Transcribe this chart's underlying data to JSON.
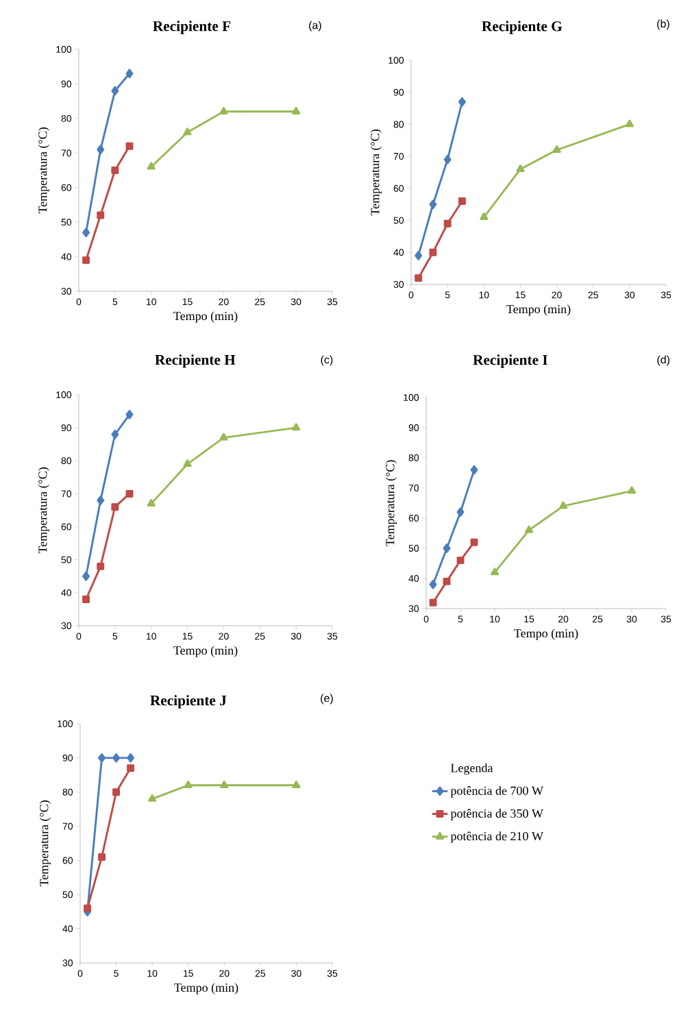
{
  "chart_data": [
    {
      "type": "line",
      "title": "Recipiente F",
      "xlabel": "Tempo (min)",
      "ylabel": "Temperatura (°C)",
      "annotations": [
        "(a)"
      ],
      "xlim": [
        0,
        35
      ],
      "ylim": [
        30,
        100
      ],
      "xticks": [
        0,
        5,
        10,
        15,
        20,
        25,
        30,
        35
      ],
      "yticks": [
        30,
        40,
        50,
        60,
        70,
        80,
        90,
        100
      ],
      "grid": false,
      "series": [
        {
          "color": "#4a7ebb",
          "marker": "diamond",
          "x": [
            1,
            3,
            5,
            7
          ],
          "values": [
            47,
            71,
            88,
            93
          ]
        },
        {
          "color": "#be4b48",
          "marker": "square",
          "x": [
            1,
            3,
            5,
            7
          ],
          "values": [
            39,
            52,
            65,
            72
          ]
        },
        {
          "color": "#98b954",
          "marker": "triangle",
          "x": [
            10,
            15,
            20,
            30
          ],
          "values": [
            66,
            76,
            82,
            82
          ]
        }
      ]
    },
    {
      "type": "line",
      "title": "Recipiente G",
      "xlabel": "Tempo (min)",
      "ylabel": "Temperatura (°C)",
      "annotations": [
        "(b)"
      ],
      "xlim": [
        0,
        35
      ],
      "ylim": [
        30,
        100
      ],
      "xticks": [
        0,
        5,
        10,
        15,
        20,
        25,
        30,
        35
      ],
      "yticks": [
        30,
        40,
        50,
        60,
        70,
        80,
        90,
        100
      ],
      "grid": false,
      "series": [
        {
          "color": "#4a7ebb",
          "marker": "diamond",
          "x": [
            1,
            3,
            5,
            7
          ],
          "values": [
            39,
            55,
            69,
            87
          ]
        },
        {
          "color": "#be4b48",
          "marker": "square",
          "x": [
            1,
            3,
            5,
            7
          ],
          "values": [
            32,
            40,
            49,
            56
          ]
        },
        {
          "color": "#98b954",
          "marker": "triangle",
          "x": [
            10,
            15,
            20,
            30
          ],
          "values": [
            51,
            66,
            72,
            80
          ]
        }
      ]
    },
    {
      "type": "line",
      "title": "Recipiente H",
      "xlabel": "Tempo (min)",
      "ylabel": "Temperatura (°C)",
      "annotations": [
        "(c)"
      ],
      "xlim": [
        0,
        35
      ],
      "ylim": [
        30,
        100
      ],
      "xticks": [
        0,
        5,
        10,
        15,
        20,
        25,
        30,
        35
      ],
      "yticks": [
        30,
        40,
        50,
        60,
        70,
        80,
        90,
        100
      ],
      "grid": false,
      "series": [
        {
          "color": "#4a7ebb",
          "marker": "diamond",
          "x": [
            1,
            3,
            5,
            7
          ],
          "values": [
            45,
            68,
            88,
            94
          ]
        },
        {
          "color": "#be4b48",
          "marker": "square",
          "x": [
            1,
            3,
            5,
            7
          ],
          "values": [
            38,
            48,
            66,
            70
          ]
        },
        {
          "color": "#98b954",
          "marker": "triangle",
          "x": [
            10,
            15,
            20,
            30
          ],
          "values": [
            67,
            79,
            87,
            90
          ]
        }
      ]
    },
    {
      "type": "line",
      "title": "Recipiente I",
      "xlabel": "Tempo (min)",
      "ylabel": "Temperatura (°C)",
      "annotations": [
        "(d)"
      ],
      "xlim": [
        0,
        35
      ],
      "ylim": [
        30,
        100
      ],
      "xticks": [
        0,
        5,
        10,
        15,
        20,
        25,
        30,
        35
      ],
      "yticks": [
        30,
        40,
        50,
        60,
        70,
        80,
        90,
        100
      ],
      "grid": false,
      "series": [
        {
          "color": "#4a7ebb",
          "marker": "diamond",
          "x": [
            1,
            3,
            5,
            7
          ],
          "values": [
            38,
            50,
            62,
            76
          ]
        },
        {
          "color": "#be4b48",
          "marker": "square",
          "x": [
            1,
            3,
            5,
            7
          ],
          "values": [
            32,
            39,
            46,
            52
          ]
        },
        {
          "color": "#98b954",
          "marker": "triangle",
          "x": [
            10,
            15,
            20,
            30
          ],
          "values": [
            42,
            56,
            64,
            69
          ]
        }
      ]
    },
    {
      "type": "line",
      "title": "Recipiente J",
      "xlabel": "Tempo (min)",
      "ylabel": "Temperatura (°C)",
      "annotations": [
        "(e)"
      ],
      "xlim": [
        0,
        35
      ],
      "ylim": [
        30,
        100
      ],
      "xticks": [
        0,
        5,
        10,
        15,
        20,
        25,
        30,
        35
      ],
      "yticks": [
        30,
        40,
        50,
        60,
        70,
        80,
        90,
        100
      ],
      "grid": false,
      "legend": "right",
      "legend_title": "Legenda",
      "series": [
        {
          "name": "potência de 700 W",
          "color": "#4a7ebb",
          "marker": "diamond",
          "x": [
            1,
            3,
            5,
            7
          ],
          "values": [
            45,
            90,
            90,
            90
          ]
        },
        {
          "name": "potência de 350 W",
          "color": "#be4b48",
          "marker": "square",
          "x": [
            1,
            3,
            5,
            7
          ],
          "values": [
            46,
            61,
            80,
            87
          ]
        },
        {
          "name": "potência de 210 W",
          "color": "#98b954",
          "marker": "triangle",
          "x": [
            10,
            15,
            20,
            30
          ],
          "values": [
            78,
            82,
            82,
            82
          ]
        }
      ]
    }
  ]
}
